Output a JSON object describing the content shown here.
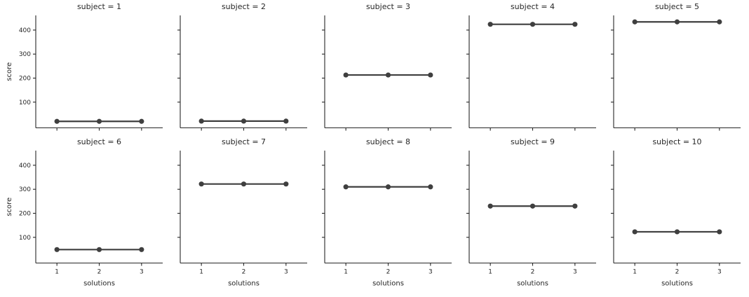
{
  "figure": {
    "kind": "seaborn-facet-grid-pointplot",
    "background_color": "#ffffff"
  },
  "chart_data": {
    "type": "line",
    "facet_grid": {
      "rows": 2,
      "cols": 5,
      "facet_variable": "subject"
    },
    "x_categories": [
      "1",
      "2",
      "3"
    ],
    "xlabel": "solutions",
    "ylabel": "score",
    "yticks": [
      100,
      200,
      300,
      400
    ],
    "ylim": [
      -7,
      461
    ],
    "grid": false,
    "legend": false,
    "line_color": "#3f3f3f",
    "marker": "circle",
    "spine_color": "#262626",
    "text_color": "#262626",
    "facets": [
      {
        "title": "subject = 1",
        "values": [
          20,
          20,
          20
        ]
      },
      {
        "title": "subject = 2",
        "values": [
          21,
          21,
          21
        ]
      },
      {
        "title": "subject = 3",
        "values": [
          213,
          213,
          213
        ]
      },
      {
        "title": "subject = 4",
        "values": [
          424,
          424,
          424
        ]
      },
      {
        "title": "subject = 5",
        "values": [
          434,
          434,
          434
        ]
      },
      {
        "title": "subject = 6",
        "values": [
          49,
          49,
          49
        ]
      },
      {
        "title": "subject = 7",
        "values": [
          322,
          322,
          322
        ]
      },
      {
        "title": "subject = 8",
        "values": [
          310,
          310,
          310
        ]
      },
      {
        "title": "subject = 9",
        "values": [
          230,
          230,
          230
        ]
      },
      {
        "title": "subject = 10",
        "values": [
          123,
          123,
          123
        ]
      }
    ]
  }
}
